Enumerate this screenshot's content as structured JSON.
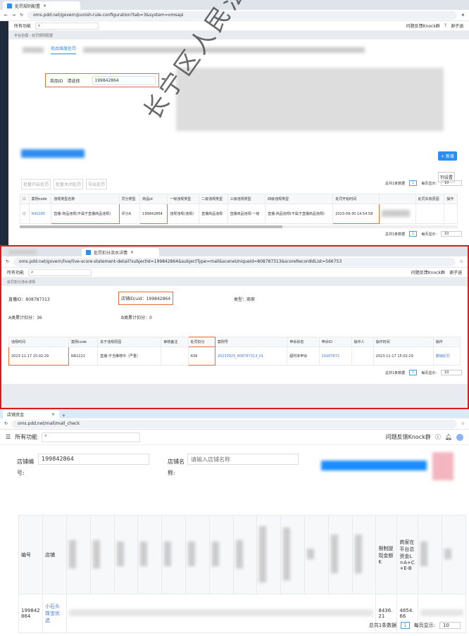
{
  "panel1": {
    "tab_title": "处罚规则配置",
    "url": "oms.pdd.net/govern/punish-rule-configuration?tab=3&system=omsapi",
    "all_functions": "所有功能",
    "feedback": "问题反馈Knock群",
    "user": "谢子涵",
    "breadcrumb": "平台治理 › 处罚规则配置",
    "active_tab": "商品维度处罚",
    "filter_label": "商品ID",
    "filter_select": "请选择",
    "filter_value": "199842864",
    "new_button": "+ 新增",
    "batch_buttons": [
      "批量开启处罚",
      "批量关闭处罚",
      "导出处罚"
    ],
    "column_settings": "列设置",
    "table": {
      "headers": [
        "案例code",
        "违规类型名称",
        "罚分类型",
        "商品id",
        "一级违规类型",
        "二级违规类型",
        "三级违规类型",
        "四级违规类型",
        "处罚开始时间",
        "",
        "处罚失效原因",
        "操作"
      ],
      "row": [
        "N40285",
        "直播-商品违规(不属于直播商品违规)",
        "评分A",
        "199842864",
        "违规违规(违规)",
        "直播商品违规",
        "直播商品违规-一级",
        "直播-商品违规(不属于直播商品违规)",
        "2023-09-30 14:54:58",
        "",
        "",
        ""
      ]
    },
    "pager": {
      "total": "总共1条数据",
      "page": "1",
      "per_page_label": "每页显示:",
      "per_page": "10"
    },
    "watermark": "长宁区人民法院"
  },
  "panel2": {
    "tab_title": "处罚扣分流水详情",
    "url": "oms.pdd.net/govern/live/live-score-statement-detail?subjectId=199842864&subjectType=mall&sceneUniqueId=808787313&scoreRecordIdList=566753",
    "all_functions": "所有功能",
    "feedback": "问题反馈Knock群",
    "user": "谢子涵",
    "breadcrumb": "处罚扣分流水详情",
    "live_id": "直播ID：808787313",
    "shop_id": "店铺ID/uid：199842864",
    "type": "类型：商家",
    "a_score": "A类累计扣分：36",
    "b_score": "B类累计扣分：0",
    "table": {
      "headers": [
        "违规时间",
        "案例code",
        "关于违规原因",
        "审核备注",
        "处罚扣分",
        "案例号",
        "申诉状态",
        "申诉ID",
        "操作人",
        "操作时间",
        "操作"
      ],
      "row": [
        "2023-11-17 15:02:29",
        "NR2221",
        "直播-不当推荐中（严重）",
        "",
        "A36",
        "20230925_808787313_01",
        "超时未申诉",
        "29187872",
        "",
        "2023-11-17 15:02:29",
        "撤销处罚"
      ]
    },
    "pager": {
      "total": "总共1条数据",
      "page": "1",
      "per_page_label": "每页显示:",
      "per_page": "10"
    }
  },
  "panel3": {
    "tab_title": "店铺资金",
    "url": "oms.pdd.net/mall/mall_check",
    "all_functions": "所有功能",
    "feedback": "问题反馈Knock群",
    "shop_no_label": "店铺编号:",
    "shop_no_value": "199842864",
    "shop_name_label": "店铺名称:",
    "shop_name_placeholder": "请输入店铺名称",
    "table": {
      "headers": [
        "编号",
        "店铺",
        "限制提现金额K",
        "商家在平台总资金L=A+C+E-B"
      ],
      "row": [
        "199842864",
        "小石头珠宝优选",
        "8436.21",
        "4854.66"
      ]
    },
    "pager": {
      "total": "总共1条数据",
      "page": "1",
      "per_page_label": "每页显示:",
      "per_page": "10"
    }
  },
  "colors": {
    "highlight": "#e0703a",
    "divider": "#d21f1f",
    "link": "#4a7bd0",
    "accent": "#1a8cff"
  }
}
